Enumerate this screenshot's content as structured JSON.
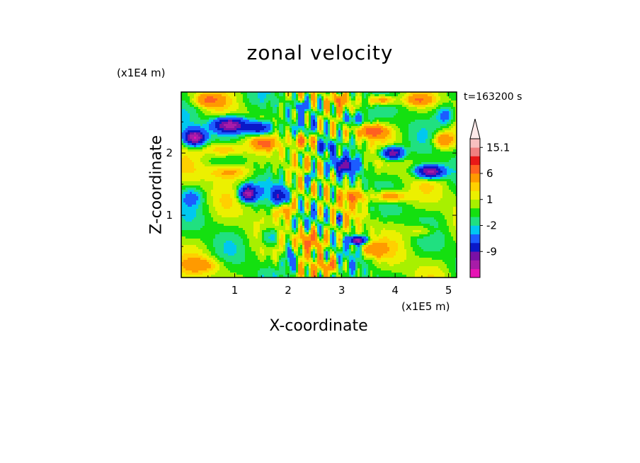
{
  "chart_data": {
    "type": "heatmap",
    "title": "zonal velocity",
    "xlabel": "X-coordinate",
    "ylabel": "Z-coordinate",
    "x_scale_note": "(x1E5 m)",
    "y_scale_note": "(x1E4 m)",
    "time_label": "t=163200 s",
    "xlim": [
      0,
      5.15
    ],
    "ylim": [
      0,
      2.98
    ],
    "x_ticks": [
      "1",
      "2",
      "3",
      "4",
      "5"
    ],
    "y_ticks": [
      "1",
      "2"
    ],
    "x_tick_values": [
      1,
      2,
      3,
      4,
      5
    ],
    "y_tick_values": [
      1,
      2
    ],
    "colorbar": {
      "levels": [
        -15,
        -12,
        -9,
        -6,
        -3,
        -2,
        -1,
        0,
        1,
        2,
        3,
        6,
        9,
        12,
        15.1
      ],
      "colors": [
        "#e612b4",
        "#a81ca8",
        "#7a10a6",
        "#0a18c8",
        "#1c5cff",
        "#00c8f0",
        "#20e080",
        "#14e010",
        "#a8f000",
        "#ecf000",
        "#ffd000",
        "#ff9a00",
        "#ff6020",
        "#e81818",
        "#f08080",
        "#f8c0c0"
      ],
      "labels": [
        "15.1",
        "6",
        "1",
        "-2",
        "-9"
      ],
      "label_values": [
        15.1,
        6,
        1,
        -2,
        -9
      ],
      "extend_max": true
    }
  }
}
